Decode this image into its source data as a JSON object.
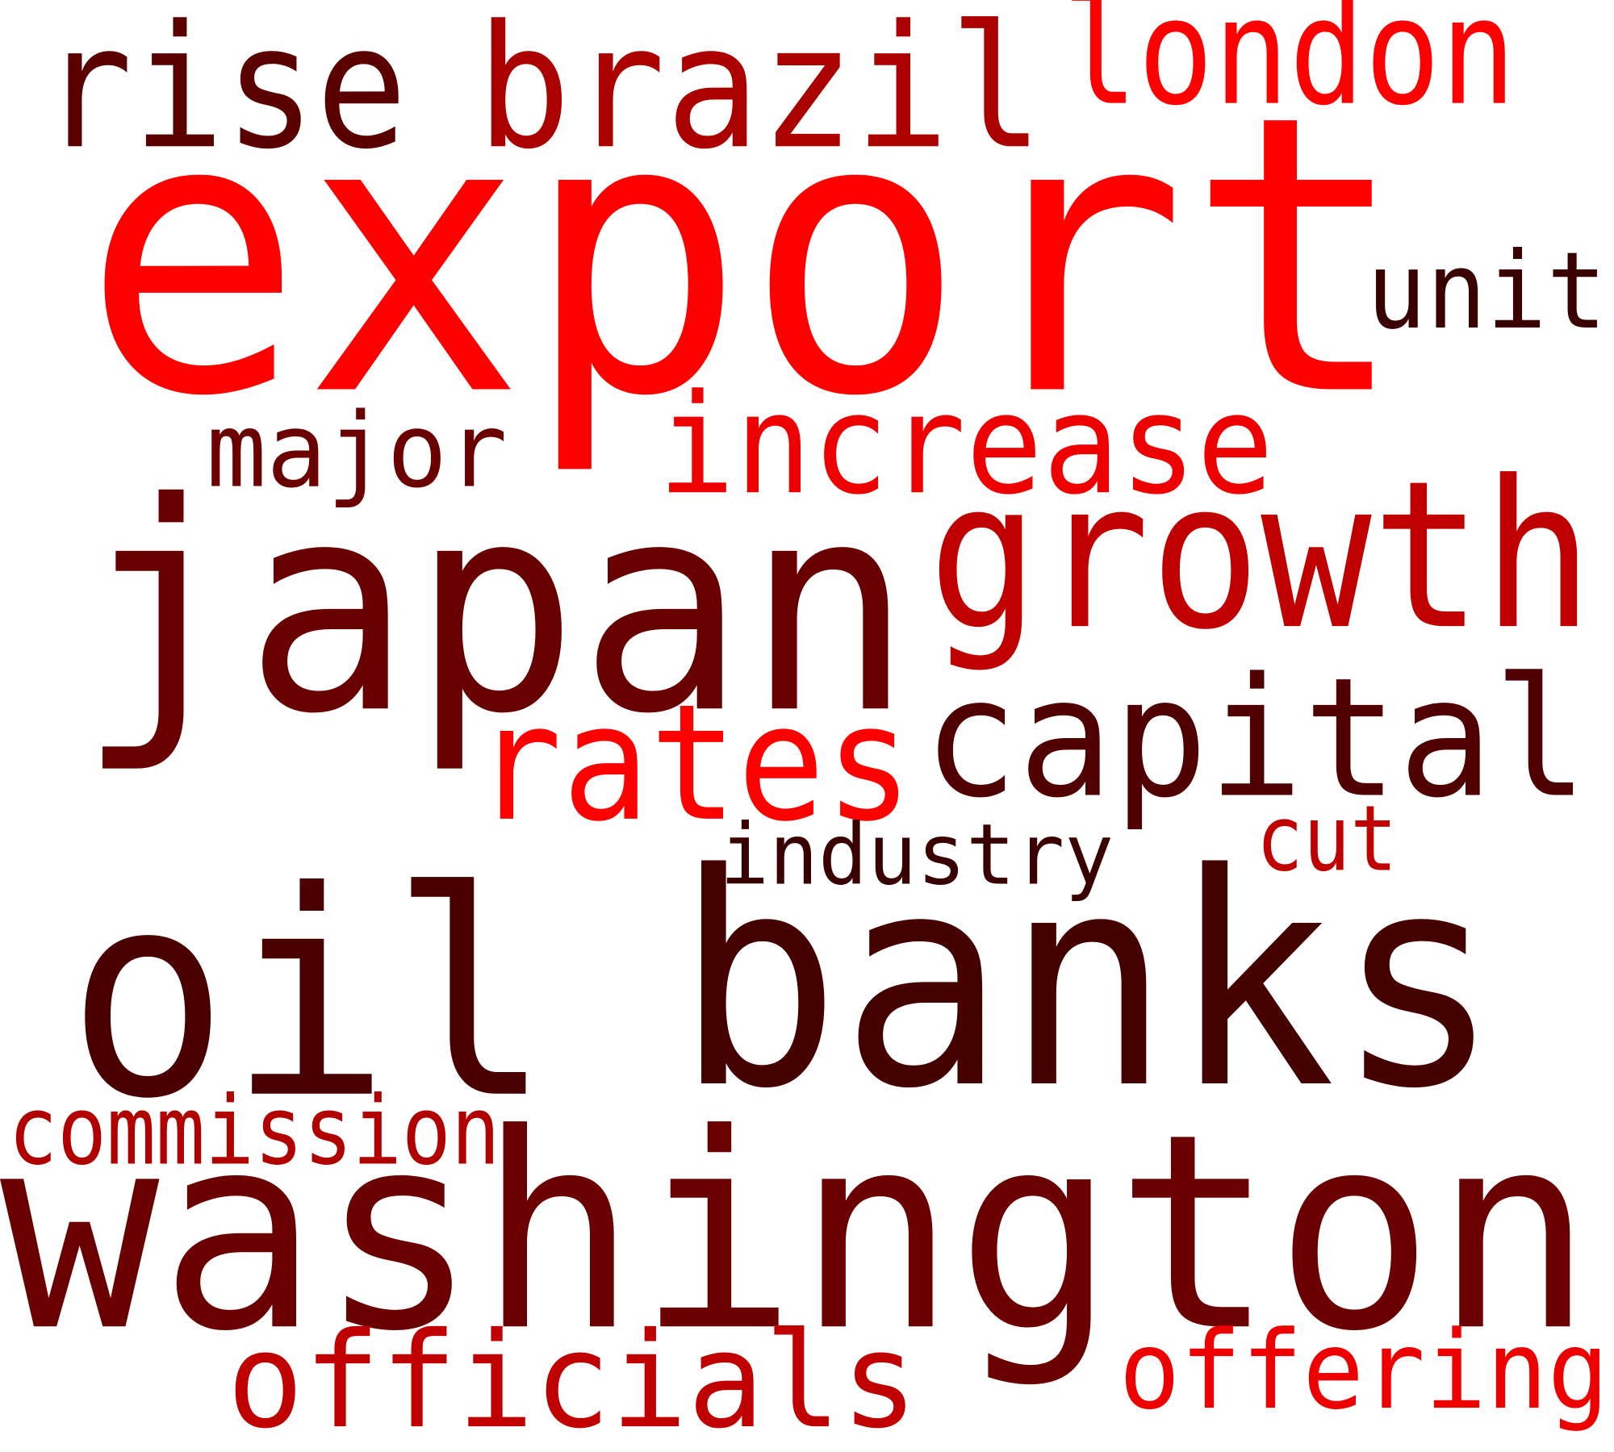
{
  "words": [
    {
      "text": "export",
      "color": "#ff0000"
    },
    {
      "text": "rise",
      "color": "#5a0000"
    },
    {
      "text": "brazil",
      "color": "#aa0000"
    },
    {
      "text": "london",
      "color": "#ff0000"
    },
    {
      "text": "unit",
      "color": "#3a0000"
    },
    {
      "text": "major",
      "color": "#6a0000"
    },
    {
      "text": "increase",
      "color": "#ee0000"
    },
    {
      "text": "japan",
      "color": "#680000"
    },
    {
      "text": "growth",
      "color": "#c00000"
    },
    {
      "text": "capital",
      "color": "#500000"
    },
    {
      "text": "rates",
      "color": "#ff0000"
    },
    {
      "text": "industry",
      "color": "#3a0000"
    },
    {
      "text": "cut",
      "color": "#c00000"
    },
    {
      "text": "oil",
      "color": "#4a0000"
    },
    {
      "text": "banks",
      "color": "#450000"
    },
    {
      "text": "commission",
      "color": "#b00000"
    },
    {
      "text": "washington",
      "color": "#6a0000"
    },
    {
      "text": "officials",
      "color": "#c00000"
    },
    {
      "text": "offering",
      "color": "#ee0000"
    }
  ]
}
